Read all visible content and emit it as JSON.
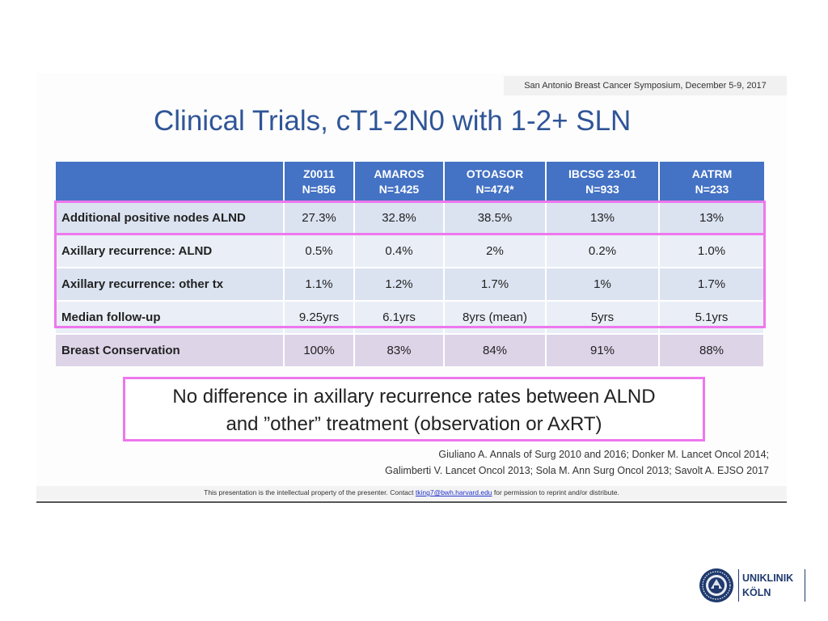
{
  "slide": {
    "conference": "San Antonio Breast Cancer Symposium, December 5-9, 2017",
    "title": "Clinical Trials, cT1-2N0 with 1-2+ SLN",
    "table": {
      "columns": [
        {
          "name": "Z0011",
          "n": "N=856"
        },
        {
          "name": "AMAROS",
          "n": "N=1425"
        },
        {
          "name": "OTOASOR",
          "n": "N=474*"
        },
        {
          "name": "IBCSG 23-01",
          "n": "N=933"
        },
        {
          "name": "AATRM",
          "n": "N=233"
        }
      ],
      "rows": [
        {
          "label": "Additional positive nodes ALND",
          "values": [
            "27.3%",
            "32.8%",
            "38.5%",
            "13%",
            "13%"
          ]
        },
        {
          "label": "Axillary recurrence: ALND",
          "values": [
            "0.5%",
            "0.4%",
            "2%",
            "0.2%",
            "1.0%"
          ]
        },
        {
          "label": "Axillary recurrence: other tx",
          "values": [
            "1.1%",
            "1.2%",
            "1.7%",
            "1%",
            "1.7%"
          ]
        },
        {
          "label": "Median follow-up",
          "values": [
            "9.25yrs",
            "6.1yrs",
            "8yrs (mean)",
            "5yrs",
            "5.1yrs"
          ]
        },
        {
          "label": "Breast Conservation",
          "values": [
            "100%",
            "83%",
            "84%",
            "91%",
            "88%"
          ]
        }
      ]
    },
    "conclusion": {
      "line1": "No difference in axillary recurrence rates between ALND",
      "line2": "and ”other” treatment (observation or AxRT)"
    },
    "references": {
      "line1": "Giuliano A. Annals of Surg 2010 and 2016; Donker M. Lancet Oncol 2014;",
      "line2": "Galimberti V. Lancet Oncol 2013; Sola M. Ann Surg Oncol 2013; Savolt A. EJSO 2017"
    },
    "footer": {
      "before": "This presentation is the intellectual property of the presenter.  Contact ",
      "contact": "tking7@bwh.harvard.edu",
      "after": " for permission to reprint and/or distribute."
    }
  },
  "logo": {
    "line1": "UNIKLINIK",
    "line2": "KÖLN",
    "colors": {
      "brand": "#1f3a6e"
    }
  },
  "colors": {
    "title": "#2f5597",
    "table_header": "#4472c4",
    "row_blue": "#dbe3f1",
    "row_lilac": "#ddd4e8",
    "highlight": "#ee77ee"
  }
}
